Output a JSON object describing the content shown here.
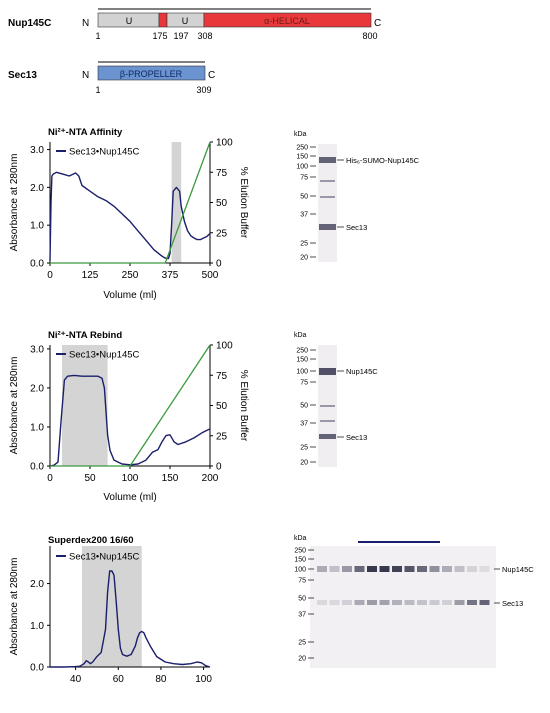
{
  "domains": {
    "nup": {
      "name": "Nup145C",
      "n": "N",
      "c": "C",
      "seg_labels": [
        "U",
        "U",
        "α-HELICAL"
      ],
      "ticks": [
        "1",
        "175",
        "197",
        "308",
        "800"
      ],
      "colors": {
        "u": "#d2d2d2",
        "helical": "#e8383b"
      }
    },
    "sec": {
      "name": "Sec13",
      "n": "N",
      "c": "C",
      "seg_labels": [
        "β-PROPELLER"
      ],
      "ticks": [
        "1",
        "309"
      ],
      "colors": {
        "propeller": "#6b93cf"
      }
    }
  },
  "chart_data": [
    {
      "type": "line",
      "title": "Ni²⁺-NTA Affinity",
      "xlabel": "Volume (ml)",
      "ylabel": "Absorbance at 280nm",
      "y2label": "% Elution Buffer",
      "xlim": [
        0,
        500
      ],
      "ylim": [
        0,
        3.2
      ],
      "y2lim": [
        0,
        100
      ],
      "xticks": [
        "0",
        "125",
        "250",
        "375",
        "500"
      ],
      "yticks": [
        "0.0",
        "1.0",
        "2.0",
        "3.0"
      ],
      "y2ticks": [
        "0",
        "25",
        "50",
        "75",
        "100"
      ],
      "legend": "Sec13•Nup145C",
      "legend_position": "top-left",
      "shade": [
        [
          380,
          410
        ]
      ],
      "series": [
        {
          "name": "Sec13•Nup145C",
          "axis": "left",
          "color": "#1a1f6b",
          "x": [
            0,
            3,
            6,
            10,
            20,
            40,
            60,
            80,
            90,
            100,
            125,
            150,
            175,
            200,
            225,
            250,
            275,
            300,
            325,
            350,
            360,
            365,
            370,
            375,
            380,
            385,
            395,
            405,
            410,
            420,
            430,
            440,
            450,
            460,
            470,
            480,
            490,
            500
          ],
          "y": [
            0.05,
            1.6,
            2.3,
            2.35,
            2.4,
            2.35,
            2.3,
            2.38,
            2.3,
            2.05,
            1.9,
            1.75,
            1.65,
            1.5,
            1.3,
            1.1,
            0.85,
            0.6,
            0.35,
            0.18,
            0.13,
            0.12,
            0.12,
            0.25,
            1.0,
            1.9,
            2.0,
            1.9,
            1.5,
            1.1,
            0.85,
            0.72,
            0.66,
            0.62,
            0.62,
            0.66,
            0.7,
            0.78
          ]
        },
        {
          "name": "% Elution Buffer",
          "axis": "right",
          "color": "#3a9b3c",
          "x": [
            0,
            360,
            500
          ],
          "y": [
            0,
            0,
            100
          ]
        }
      ]
    },
    {
      "type": "line",
      "title": "Ni²⁺-NTA Rebind",
      "xlabel": "Volume (ml)",
      "ylabel": "Absorbance at 280nm",
      "y2label": "% Elution Buffer",
      "xlim": [
        0,
        200
      ],
      "ylim": [
        0,
        3.1
      ],
      "y2lim": [
        0,
        100
      ],
      "xticks": [
        "0",
        "50",
        "100",
        "150",
        "200"
      ],
      "yticks": [
        "0.0",
        "1.0",
        "2.0",
        "3.0"
      ],
      "y2ticks": [
        "0",
        "25",
        "50",
        "75",
        "100"
      ],
      "legend": "Sec13•Nup145C",
      "legend_position": "top-left",
      "shade": [
        [
          15,
          72
        ]
      ],
      "series": [
        {
          "name": "Sec13•Nup145C",
          "axis": "left",
          "color": "#1a1f6b",
          "x": [
            0,
            5,
            10,
            14,
            18,
            22,
            30,
            40,
            50,
            60,
            65,
            68,
            70,
            72,
            75,
            80,
            90,
            100,
            110,
            120,
            128,
            135,
            140,
            145,
            150,
            155,
            160,
            170,
            180,
            190,
            200
          ],
          "y": [
            0.0,
            0.02,
            0.1,
            1.2,
            2.2,
            2.3,
            2.32,
            2.3,
            2.3,
            2.3,
            2.25,
            2.0,
            1.4,
            0.8,
            0.4,
            0.15,
            0.05,
            0.03,
            0.05,
            0.15,
            0.35,
            0.42,
            0.62,
            0.78,
            0.8,
            0.62,
            0.55,
            0.62,
            0.72,
            0.85,
            0.95
          ]
        },
        {
          "name": "% Elution Buffer",
          "axis": "right",
          "color": "#3a9b3c",
          "x": [
            0,
            100,
            200
          ],
          "y": [
            0,
            0,
            100
          ]
        }
      ]
    },
    {
      "type": "line",
      "title": "Superdex200 16/60",
      "xlabel": "",
      "ylabel": "Absorbance at 280nm",
      "xlim": [
        28,
        103
      ],
      "ylim": [
        0,
        2.9
      ],
      "xticks": [
        "40",
        "60",
        "80",
        "100"
      ],
      "yticks": [
        "0.0",
        "1.0",
        "2.0"
      ],
      "legend": "Sec13•Nup145C",
      "legend_position": "top-left",
      "shade": [
        [
          43,
          71
        ]
      ],
      "series": [
        {
          "name": "Sec13•Nup145C",
          "axis": "left",
          "color": "#1a1f6b",
          "x": [
            28,
            35,
            40,
            42,
            44,
            45,
            46,
            47,
            48,
            50,
            52,
            54,
            55,
            56,
            57,
            58,
            59,
            60,
            61,
            62,
            64,
            66,
            68,
            69,
            70,
            71,
            72,
            73,
            75,
            78,
            82,
            86,
            90,
            94,
            97,
            99,
            101,
            103
          ],
          "y": [
            0.0,
            0.0,
            0.01,
            0.02,
            0.08,
            0.15,
            0.12,
            0.08,
            0.12,
            0.25,
            0.35,
            0.9,
            1.8,
            2.3,
            2.3,
            2.2,
            1.6,
            0.9,
            0.45,
            0.3,
            0.26,
            0.3,
            0.5,
            0.7,
            0.82,
            0.85,
            0.82,
            0.7,
            0.5,
            0.25,
            0.12,
            0.08,
            0.06,
            0.08,
            0.12,
            0.1,
            0.03,
            0.0
          ]
        }
      ]
    }
  ],
  "gels": [
    {
      "unit": "kDa",
      "markers": [
        "250",
        "150",
        "100",
        "75",
        "50",
        "37",
        "25",
        "20"
      ],
      "bands": [
        "His₆-SUMO-Nup145C",
        "Sec13"
      ]
    },
    {
      "unit": "kDa",
      "markers": [
        "250",
        "150",
        "100",
        "75",
        "50",
        "37",
        "25",
        "20"
      ],
      "bands": [
        "Nup145C",
        "Sec13"
      ]
    },
    {
      "unit": "kDa",
      "markers": [
        "250",
        "150",
        "100",
        "75",
        "50",
        "37",
        "25",
        "20"
      ],
      "bands": [
        "Nup145C",
        "Sec13"
      ]
    }
  ]
}
